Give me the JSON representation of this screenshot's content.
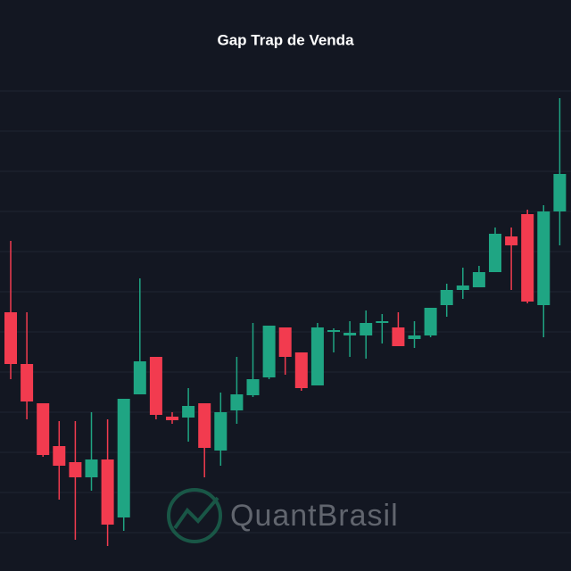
{
  "chart_data": {
    "type": "candlestick",
    "title": "Gap Trap de Venda",
    "watermark": "QuantBrasil",
    "up_color": "#1fa583",
    "down_color": "#f23b4f",
    "ylim": [
      0,
      540
    ],
    "open": [
      270,
      212,
      168,
      120,
      102,
      85,
      105,
      40,
      178,
      220,
      153,
      152,
      168,
      115,
      160,
      177,
      197,
      253,
      225,
      188,
      248,
      244,
      244,
      258,
      253,
      240,
      244,
      278,
      295,
      298,
      315,
      355,
      380,
      278,
      383
    ],
    "high": [
      350,
      270,
      168,
      148,
      148,
      158,
      150,
      173,
      308,
      220,
      158,
      185,
      168,
      180,
      220,
      258,
      255,
      253,
      225,
      258,
      252,
      260,
      272,
      268,
      270,
      260,
      275,
      302,
      320,
      322,
      365,
      365,
      385,
      390,
      510
    ],
    "low": [
      195,
      150,
      108,
      60,
      15,
      70,
      8,
      25,
      178,
      150,
      145,
      125,
      85,
      98,
      145,
      175,
      195,
      200,
      182,
      188,
      225,
      220,
      218,
      235,
      232,
      230,
      242,
      265,
      285,
      298,
      315,
      295,
      280,
      242,
      345
    ],
    "close": [
      212,
      170,
      110,
      98,
      85,
      105,
      32,
      173,
      215,
      155,
      149,
      165,
      118,
      158,
      178,
      195,
      255,
      220,
      185,
      253,
      250,
      247,
      258,
      260,
      232,
      244,
      275,
      295,
      300,
      315,
      358,
      345,
      282,
      383,
      425
    ]
  }
}
